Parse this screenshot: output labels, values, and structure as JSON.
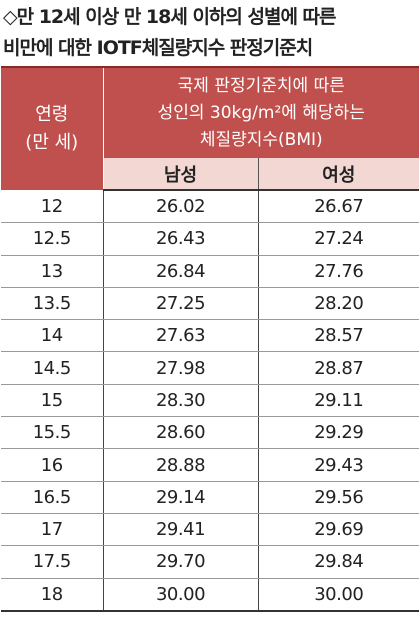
{
  "title": {
    "line1": "◇만 12세 이상 만 18세 이하의 성별에 따른",
    "line2": "비만에 대한 IOTF체질량지수 판정기준치"
  },
  "table": {
    "header": {
      "age": "연령",
      "age_unit": "(만 세)",
      "criteria": [
        "국제 판정기준치에 따른",
        "성인의 30kg/m²에 해당하는",
        "체질량지수(BMI)"
      ],
      "male": "남성",
      "female": "여성"
    },
    "rows": [
      [
        "12",
        "26.02",
        "26.67"
      ],
      [
        "12.5",
        "26.43",
        "27.24"
      ],
      [
        "13",
        "26.84",
        "27.76"
      ],
      [
        "13.5",
        "27.25",
        "28.20"
      ],
      [
        "14",
        "27.63",
        "28.57"
      ],
      [
        "14.5",
        "27.98",
        "28.87"
      ],
      [
        "15",
        "28.30",
        "29.11"
      ],
      [
        "15.5",
        "28.60",
        "29.29"
      ],
      [
        "16",
        "28.88",
        "29.43"
      ],
      [
        "16.5",
        "29.14",
        "29.56"
      ],
      [
        "17",
        "29.41",
        "29.69"
      ],
      [
        "17.5",
        "29.70",
        "29.84"
      ],
      [
        "18",
        "30.00",
        "30.00"
      ]
    ]
  }
}
